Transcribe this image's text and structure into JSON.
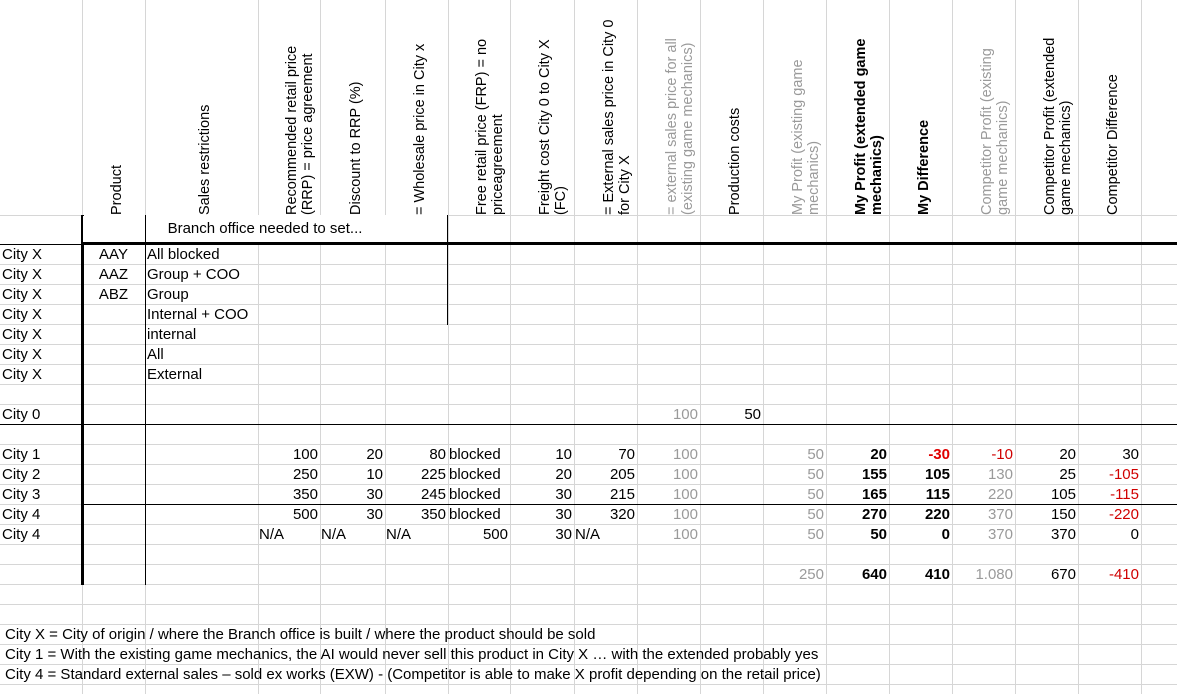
{
  "headers": [
    {
      "text": "Product",
      "style": ""
    },
    {
      "text": "Sales restrictions",
      "style": ""
    },
    {
      "text": "Recommended retail price (RRP) = price agreement",
      "style": ""
    },
    {
      "text": "Discount to RRP (%)",
      "style": ""
    },
    {
      "text": "= Wholesale price in City x",
      "style": ""
    },
    {
      "text": "Free retail price (FRP) = no priceagreement",
      "style": ""
    },
    {
      "text": "Freight cost City 0 to City X (FC)",
      "style": ""
    },
    {
      "text": "= External sales price in City 0 for City X",
      "style": ""
    },
    {
      "text": "= external sales price for all (existing game mechanics)",
      "style": "grey"
    },
    {
      "text": "Production costs",
      "style": ""
    },
    {
      "text": "My Profit (existing game mechanics)",
      "style": "grey"
    },
    {
      "text": "My Profit (extended game mechanics)",
      "style": "bold"
    },
    {
      "text": "My Difference",
      "style": "bold"
    },
    {
      "text": "Competitor Profit (existing game mechanics)",
      "style": "grey"
    },
    {
      "text": "Competitor Profit (extended game mechanics)",
      "style": ""
    },
    {
      "text": "Competitor Difference",
      "style": ""
    }
  ],
  "branch_note": "Branch office needed to set...",
  "restriction_rows": [
    {
      "city": "City X",
      "product": "AAY",
      "restriction": "All blocked"
    },
    {
      "city": "City X",
      "product": "AAZ",
      "restriction": "Group + COO"
    },
    {
      "city": "City X",
      "product": "ABZ",
      "restriction": "Group"
    },
    {
      "city": "City X",
      "product": "",
      "restriction": "Internal + COO"
    },
    {
      "city": "City X",
      "product": "",
      "restriction": "internal"
    },
    {
      "city": "City X",
      "product": "",
      "restriction": "All"
    },
    {
      "city": "City X",
      "product": "",
      "restriction": "External"
    }
  ],
  "origin_row": {
    "city": "City 0",
    "ext_all": "100",
    "prod_cost": "50"
  },
  "price_rows": [
    {
      "city": "City 1",
      "rrp": "100",
      "disc": "20",
      "wholesale": "80",
      "frp": "blocked",
      "freight": "10",
      "ext": "70",
      "ext_all": "100",
      "my_old": "50",
      "my_new": "20",
      "my_diff": "-30",
      "comp_old": "-10",
      "comp_new": "20",
      "comp_diff": "30"
    },
    {
      "city": "City 2",
      "rrp": "250",
      "disc": "10",
      "wholesale": "225",
      "frp": "blocked",
      "freight": "20",
      "ext": "205",
      "ext_all": "100",
      "my_old": "50",
      "my_new": "155",
      "my_diff": "105",
      "comp_old": "130",
      "comp_new": "25",
      "comp_diff": "-105"
    },
    {
      "city": "City 3",
      "rrp": "350",
      "disc": "30",
      "wholesale": "245",
      "frp": "blocked",
      "freight": "30",
      "ext": "215",
      "ext_all": "100",
      "my_old": "50",
      "my_new": "165",
      "my_diff": "115",
      "comp_old": "220",
      "comp_new": "105",
      "comp_diff": "-115"
    },
    {
      "city": "City 4",
      "rrp": "500",
      "disc": "30",
      "wholesale": "350",
      "frp": "blocked",
      "freight": "30",
      "ext": "320",
      "ext_all": "100",
      "my_old": "50",
      "my_new": "270",
      "my_diff": "220",
      "comp_old": "370",
      "comp_new": "150",
      "comp_diff": "-220"
    },
    {
      "city": "City 4",
      "rrp": "N/A",
      "disc": "N/A",
      "wholesale": "N/A",
      "frp": "500",
      "freight": "30",
      "ext": "N/A",
      "ext_all": "100",
      "my_old": "50",
      "my_new": "50",
      "my_diff": "0",
      "comp_old": "370",
      "comp_new": "370",
      "comp_diff": "0"
    }
  ],
  "totals": {
    "my_old": "250",
    "my_new": "640",
    "my_diff": "410",
    "comp_old": "1.080",
    "comp_new": "670",
    "comp_diff": "-410"
  },
  "notes": [
    "City X = City of origin / where the Branch office is built / where the product should be sold",
    "City 1 = With the existing game mechanics, the AI would never sell this product in City X … with the extended probably yes",
    "City 4 = Standard external sales – sold ex works (EXW) - (Competitor is able to make X profit depending on the retail price)"
  ],
  "colors": {
    "grid": "#d6d6d6",
    "grey_text": "#9a9a9a",
    "red": "#d00000"
  }
}
